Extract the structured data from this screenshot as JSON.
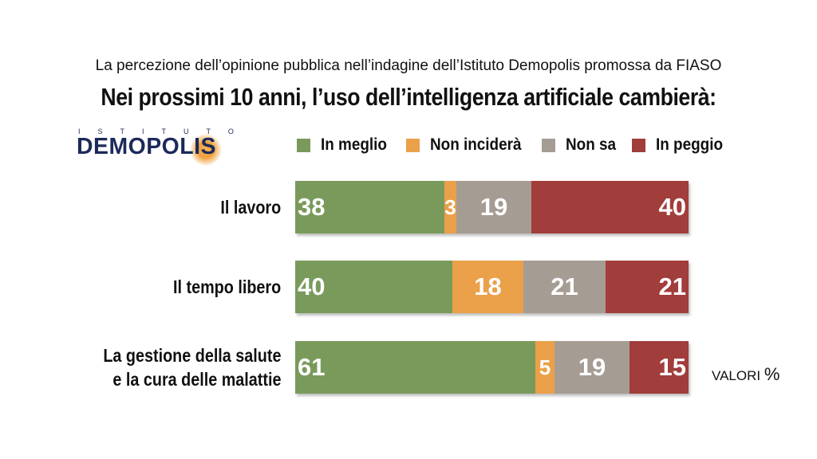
{
  "header": {
    "subtitle": "La percezione dell’opinione pubblica nell’indagine dell’Istituto Demopolis promossa da FIASO",
    "title": "Nei prossimi 10 anni, l’uso dell’intelligenza artificiale cambierà:"
  },
  "logo": {
    "top_text": "ISTITUTO",
    "main_text": "DEMOPOLIS",
    "color": "#1c2a5a",
    "accent": "#f0a03c"
  },
  "note": {
    "text": "VALORI",
    "unit": "%"
  },
  "chart_data": {
    "type": "bar",
    "orientation": "horizontal",
    "stacked": true,
    "categories": [
      "Il lavoro",
      "Il tempo libero",
      "La gestione della salute e la cura delle malattie"
    ],
    "category_lines": [
      [
        "Il lavoro"
      ],
      [
        "Il tempo libero"
      ],
      [
        "La gestione della salute",
        "e la cura delle malattie"
      ]
    ],
    "series": [
      {
        "name": "In meglio",
        "color": "#7a9a5c",
        "values": [
          38,
          40,
          61
        ]
      },
      {
        "name": "Non inciderà",
        "color": "#eba04a",
        "values": [
          3,
          18,
          5
        ]
      },
      {
        "name": "Non sa",
        "color": "#a59c94",
        "values": [
          19,
          21,
          19
        ]
      },
      {
        "name": "In peggio",
        "color": "#a13d3b",
        "values": [
          40,
          21,
          15
        ]
      }
    ],
    "xlim": [
      0,
      100
    ],
    "legend": "top",
    "grid": false
  }
}
